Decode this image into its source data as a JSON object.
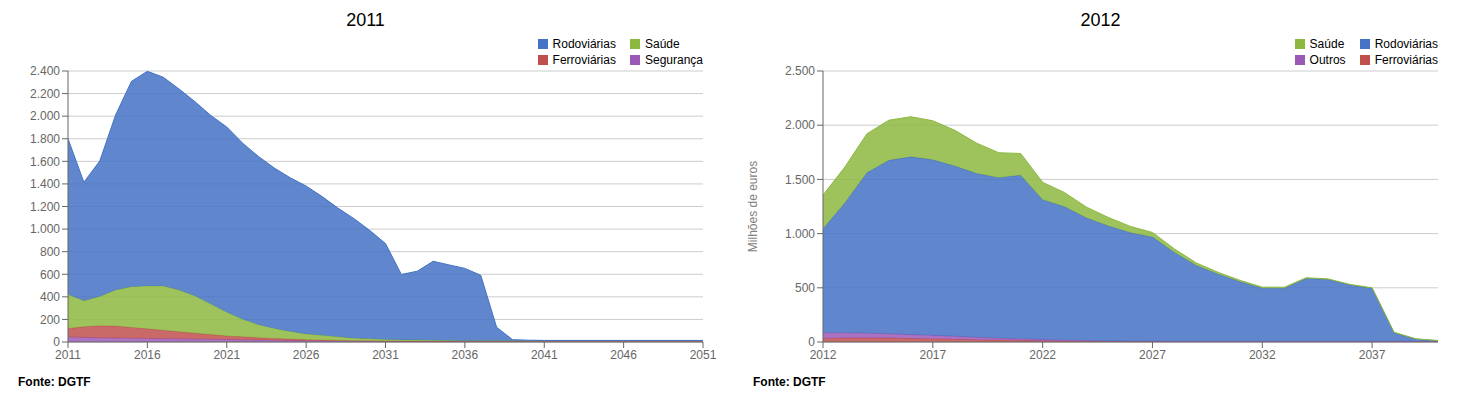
{
  "chart_data": [
    {
      "type": "area",
      "title": "2011",
      "stacked": true,
      "grid": true,
      "legend": "upper right",
      "annotations": [
        "Fonte: DGTF"
      ],
      "x": [
        2011,
        2012,
        2013,
        2014,
        2015,
        2016,
        2017,
        2018,
        2019,
        2020,
        2021,
        2022,
        2023,
        2024,
        2025,
        2026,
        2027,
        2028,
        2029,
        2030,
        2031,
        2032,
        2033,
        2034,
        2035,
        2036,
        2037,
        2038,
        2039,
        2040,
        2041,
        2042,
        2043,
        2044,
        2045,
        2046,
        2047,
        2048,
        2049,
        2050,
        2051
      ],
      "xlim": [
        2011,
        2051
      ],
      "xticks": [
        2011,
        2016,
        2021,
        2026,
        2031,
        2036,
        2041,
        2046,
        2051
      ],
      "ylim": [
        0,
        2400
      ],
      "yticks": [
        0,
        200,
        400,
        600,
        800,
        {
          "value": 1000,
          "label": "1.000"
        },
        {
          "value": 1200,
          "label": "1.200"
        },
        {
          "value": 1400,
          "label": "1.400"
        },
        {
          "value": 1600,
          "label": "1.600"
        },
        {
          "value": 1800,
          "label": "1.800"
        },
        {
          "value": 2000,
          "label": "2.000"
        },
        {
          "value": 2200,
          "label": "2.200"
        },
        {
          "value": 2400,
          "label": "2.400"
        }
      ],
      "series": [
        {
          "name": "Rodoviárias",
          "color": "#4472C4",
          "values": [
            1380,
            1050,
            1200,
            1550,
            1820,
            1900,
            1850,
            1780,
            1720,
            1670,
            1640,
            1560,
            1490,
            1420,
            1360,
            1310,
            1230,
            1140,
            1060,
            960,
            850,
            580,
            610,
            700,
            670,
            640,
            580,
            120,
            10,
            5,
            3,
            3,
            3,
            3,
            3,
            3,
            3,
            3,
            3,
            3,
            3
          ]
        },
        {
          "name": "Saúde",
          "color": "#8DB840",
          "values": [
            300,
            230,
            260,
            320,
            360,
            380,
            390,
            370,
            330,
            270,
            210,
            155,
            115,
            88,
            68,
            50,
            42,
            32,
            22,
            18,
            13,
            10,
            9,
            7,
            5,
            4,
            3,
            3,
            3,
            3,
            3,
            3,
            3,
            3,
            3,
            3,
            3,
            3,
            3,
            3,
            3
          ]
        },
        {
          "name": "Ferroviárias",
          "color": "#C0504D",
          "values": [
            75,
            95,
            105,
            105,
            95,
            85,
            75,
            62,
            52,
            42,
            32,
            26,
            20,
            16,
            12,
            9,
            7,
            5,
            4,
            4,
            3,
            3,
            3,
            3,
            3,
            3,
            3,
            3,
            3,
            3,
            3,
            3,
            3,
            3,
            3,
            3,
            3,
            3,
            3,
            3,
            3
          ]
        },
        {
          "name": "Segurança",
          "color": "#9B59B6",
          "values": [
            45,
            40,
            38,
            36,
            34,
            32,
            30,
            28,
            26,
            24,
            22,
            20,
            18,
            16,
            14,
            12,
            10,
            9,
            8,
            7,
            6,
            5,
            5,
            5,
            5,
            5,
            5,
            5,
            5,
            5,
            5,
            5,
            5,
            5,
            5,
            5,
            5,
            5,
            5,
            5,
            5
          ]
        }
      ]
    },
    {
      "type": "area",
      "title": "2012",
      "stacked": true,
      "grid": true,
      "legend": "upper right",
      "annotations": [
        "Fonte: DGTF"
      ],
      "ylabel": "Milhões de euros",
      "x": [
        2012,
        2013,
        2014,
        2015,
        2016,
        2017,
        2018,
        2019,
        2020,
        2021,
        2022,
        2023,
        2024,
        2025,
        2026,
        2027,
        2028,
        2029,
        2030,
        2031,
        2032,
        2033,
        2034,
        2035,
        2036,
        2037,
        2038,
        2039,
        2040
      ],
      "xlim": [
        2012,
        2040
      ],
      "xticks": [
        2012,
        2017,
        2022,
        2027,
        2032,
        2037
      ],
      "ylim": [
        0,
        2500
      ],
      "yticks": [
        0,
        500,
        {
          "value": 1000,
          "label": "1.000"
        },
        {
          "value": 1500,
          "label": "1.500"
        },
        {
          "value": 2000,
          "label": "2.000"
        },
        {
          "value": 2500,
          "label": "2.500"
        }
      ],
      "series": [
        {
          "name": "Saúde",
          "color": "#8DB840",
          "values": [
            310,
            330,
            360,
            370,
            370,
            360,
            330,
            280,
            230,
            200,
            160,
            130,
            100,
            78,
            58,
            43,
            33,
            23,
            16,
            12,
            10,
            9,
            7,
            6,
            5,
            4,
            3,
            3,
            3
          ]
        },
        {
          "name": "Rodoviárias",
          "color": "#4472C4",
          "values": [
            960,
            1200,
            1480,
            1600,
            1640,
            1620,
            1570,
            1510,
            1480,
            1510,
            1290,
            1230,
            1130,
            1060,
            1000,
            960,
            820,
            700,
            620,
            550,
            490,
            490,
            580,
            570,
            520,
            490,
            80,
            20,
            5
          ]
        },
        {
          "name": "Outros",
          "color": "#9B59B6",
          "values": [
            52,
            48,
            43,
            40,
            36,
            32,
            28,
            23,
            18,
            14,
            11,
            9,
            7,
            5,
            4,
            4,
            3,
            3,
            3,
            3,
            3,
            3,
            3,
            3,
            3,
            3,
            3,
            3,
            3
          ]
        },
        {
          "name": "Ferroviárias",
          "color": "#C0504D",
          "values": [
            33,
            37,
            38,
            36,
            32,
            29,
            25,
            21,
            18,
            15,
            12,
            9,
            7,
            5,
            4,
            4,
            3,
            3,
            3,
            3,
            3,
            3,
            3,
            3,
            3,
            3,
            3,
            3,
            3
          ]
        }
      ]
    }
  ]
}
